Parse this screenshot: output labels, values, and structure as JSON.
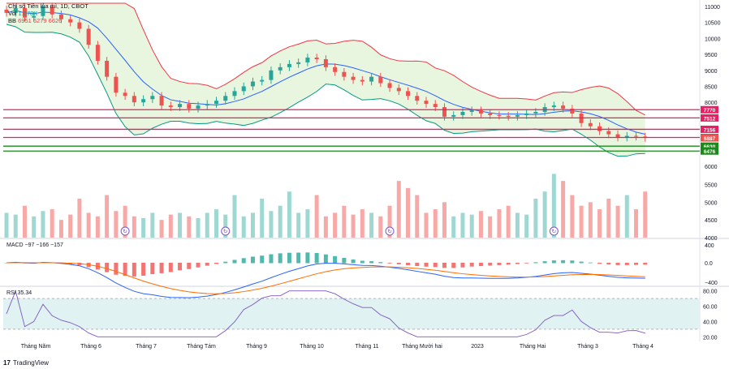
{
  "header": {
    "symbol_line": "Chỉ số Tiền lúa mì, 1D, CBOT",
    "volume_label": "Vol",
    "volume_value": "1.678K",
    "bb_label": "BB",
    "bb_values": "6951 6279 6626"
  },
  "footer": {
    "brand": "TradingView",
    "logo_glyph": "17"
  },
  "colors": {
    "up": "#26a69a",
    "down": "#ef5350",
    "bb_upper": "#f23645",
    "bb_mid": "#2962ff",
    "bb_lower": "#089981",
    "bb_fill": "#e6f4dc",
    "hline_red": "#e91e63",
    "hline_green": "#1b8a1b",
    "macd": "#2962ff",
    "signal": "#ff6d00",
    "rsi": "#7e57c2",
    "rsi_band": "#e0f2f1"
  },
  "chart_data": {
    "type": "candlestick",
    "x_ticks": [
      "Tháng Năm",
      "Tháng 6",
      "Tháng 7",
      "Tháng Tám",
      "Tháng 9",
      "Tháng 10",
      "Tháng 11",
      "Tháng Mười hai",
      "2023",
      "Tháng Hai",
      "Tháng 3",
      "Tháng 4"
    ],
    "price_axis": {
      "ticks": [
        "11000",
        "10500",
        "10000",
        "9500",
        "9000",
        "8500",
        "8000",
        "6000"
      ],
      "range": [
        6000,
        11100
      ]
    },
    "volume_axis": {
      "ticks": [
        "5500",
        "5000",
        "4500",
        "4000"
      ]
    },
    "price_series_close": [
      10800,
      10950,
      10650,
      10700,
      11000,
      10750,
      10600,
      10500,
      10300,
      9800,
      9300,
      8800,
      8300,
      8200,
      8000,
      8100,
      8200,
      7900,
      7850,
      7950,
      7800,
      7900,
      7950,
      8050,
      8200,
      8350,
      8500,
      8650,
      8700,
      9000,
      9100,
      9200,
      9250,
      9400,
      9350,
      9100,
      8950,
      8800,
      8700,
      8650,
      8800,
      8600,
      8450,
      8350,
      8200,
      8050,
      7950,
      7850,
      7550,
      7600,
      7700,
      7750,
      7650,
      7600,
      7580,
      7550,
      7600,
      7650,
      7700,
      7850,
      7900,
      7800,
      7650,
      7350,
      7250,
      7100,
      7000,
      6900,
      6950,
      6930,
      6887
    ],
    "horizontal_levels": [
      {
        "label": "7770",
        "kind": "resistance"
      },
      {
        "label": "7512",
        "kind": "resistance"
      },
      {
        "label": "7156",
        "kind": "resistance"
      },
      {
        "label": "6900",
        "kind": "resistance"
      },
      {
        "label": "6887",
        "kind": "last_price"
      },
      {
        "label": "6630",
        "kind": "support"
      },
      {
        "label": "6476",
        "kind": "support"
      }
    ],
    "volume_series": [
      4700,
      4650,
      4900,
      4600,
      4750,
      4800,
      4500,
      4650,
      5100,
      4700,
      4600,
      5200,
      4750,
      4900,
      4600,
      4550,
      4700,
      4500,
      4650,
      4700,
      4600,
      4550,
      4700,
      4800,
      4650,
      5200,
      4600,
      4700,
      5100,
      4750,
      4900,
      5300,
      4700,
      4800,
      5200,
      4600,
      4700,
      4900,
      4650,
      4800,
      4700,
      4600,
      4900,
      5600,
      5400,
      5200,
      4700,
      4800,
      5000,
      4600,
      4700,
      4650,
      4750,
      4600,
      4800,
      4900,
      4700,
      4650,
      5100,
      5300,
      5800,
      5600,
      5200,
      4900,
      5000,
      4800,
      5100,
      4900,
      5200,
      4800,
      5300
    ],
    "volume_marker_glyph": "↻",
    "macd": {
      "label": "MACD",
      "values": "−97 −166 −157",
      "axis_ticks": [
        "400",
        "0.0",
        "−400"
      ]
    },
    "rsi": {
      "label": "RSI",
      "value": "35.34",
      "axis_ticks": [
        "80.00",
        "60.00",
        "40.00",
        "20.00"
      ]
    }
  }
}
